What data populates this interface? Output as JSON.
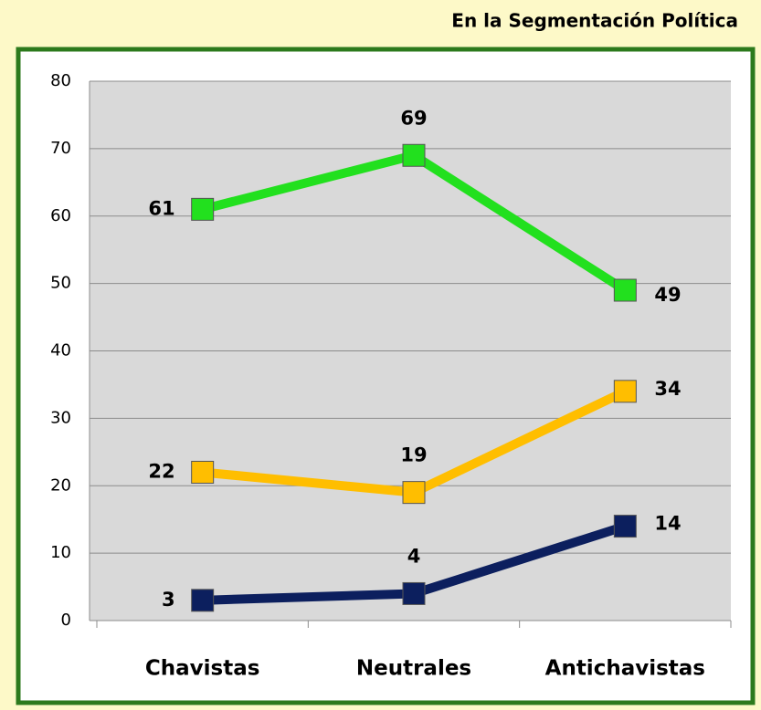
{
  "chart_data": {
    "type": "line",
    "title": "En la Segmentación Política",
    "categories": [
      "Chavistas",
      "Neutrales",
      "Antichavistas"
    ],
    "series": [
      {
        "color": "#22e01e",
        "values": [
          61,
          69,
          49
        ]
      },
      {
        "color": "#ffbe00",
        "values": [
          22,
          19,
          34
        ]
      },
      {
        "color": "#0c1f5e",
        "values": [
          3,
          4,
          14
        ]
      }
    ],
    "ylim": [
      0,
      80
    ],
    "yticks": [
      0,
      10,
      20,
      30,
      40,
      50,
      60,
      70,
      80
    ],
    "grid": true
  }
}
